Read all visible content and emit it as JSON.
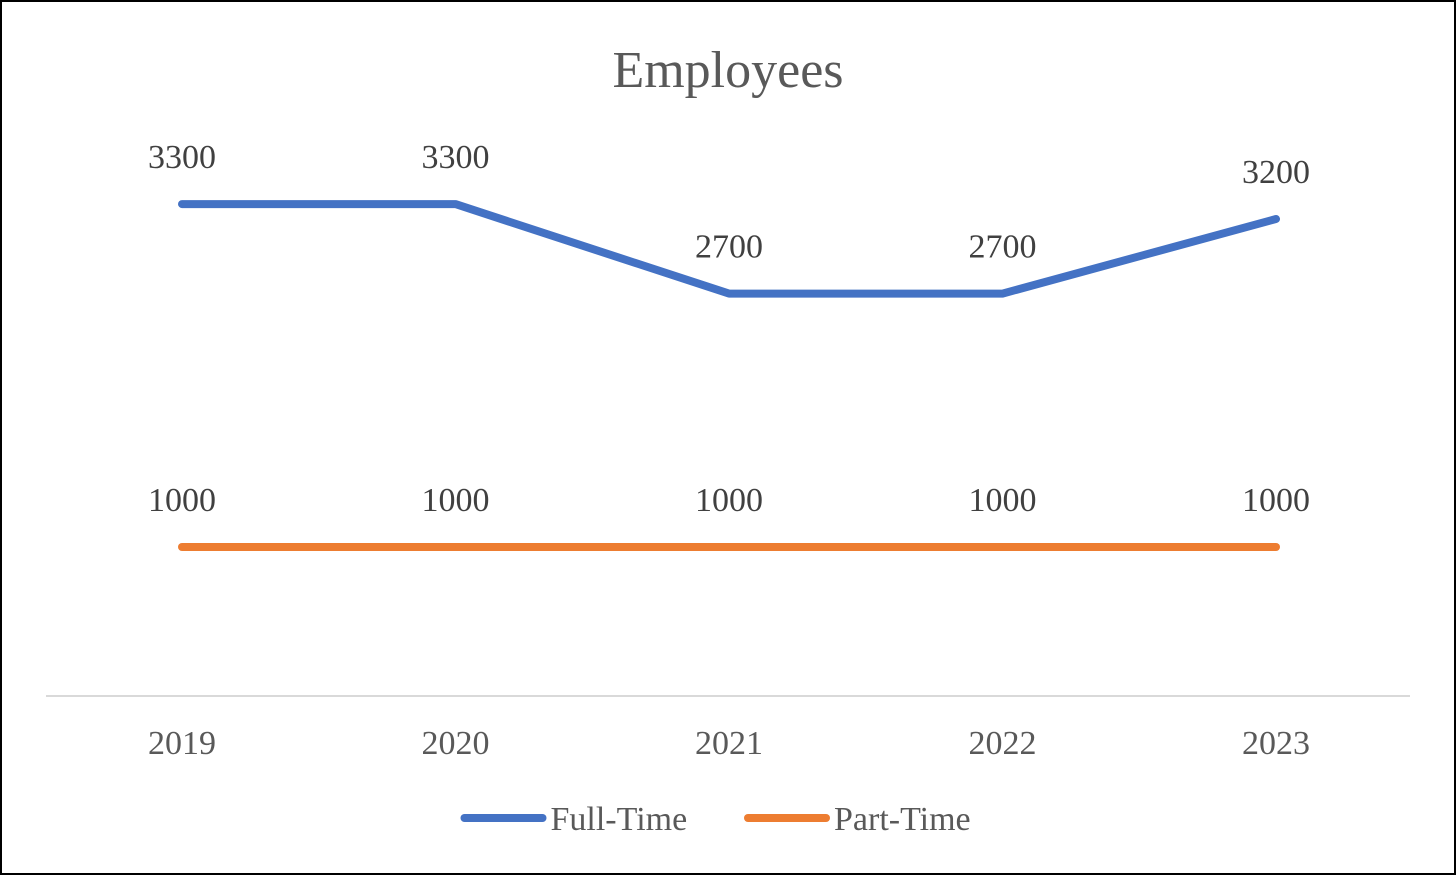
{
  "chart_data": {
    "type": "line",
    "title": "Employees",
    "categories": [
      "2019",
      "2020",
      "2021",
      "2022",
      "2023"
    ],
    "series": [
      {
        "name": "Full-Time",
        "values": [
          3300,
          3300,
          2700,
          2700,
          3200
        ],
        "color": "#4472C4"
      },
      {
        "name": "Part-Time",
        "values": [
          1000,
          1000,
          1000,
          1000,
          1000
        ],
        "color": "#ED7D31"
      }
    ],
    "ylim": [
      0,
      4200
    ],
    "grid": false,
    "data_labels": true,
    "legend_position": "bottom"
  }
}
